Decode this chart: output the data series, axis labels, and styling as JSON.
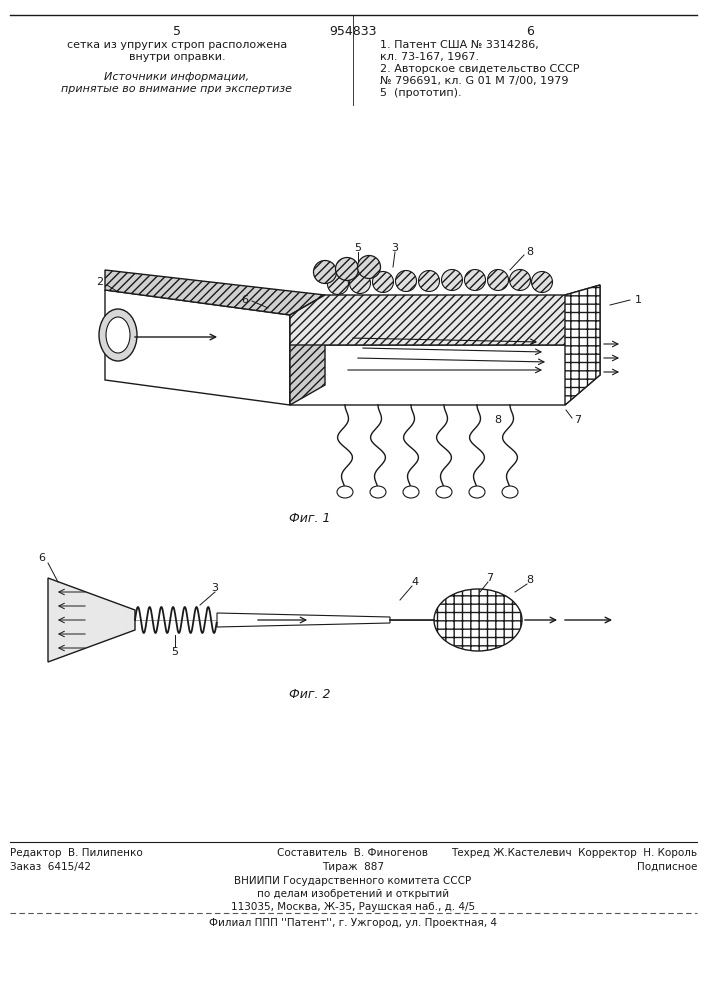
{
  "bg_color": "#f5f5f0",
  "paper_color": "#ffffff",
  "line_color": "#1a1a1a",
  "top_left_text": "5",
  "patent_number": "954833",
  "top_right_text": "6",
  "col_left_lines": [
    "сетка из упругих строп расположена",
    "внутри оправки."
  ],
  "col_left_label": "Источники информации,",
  "col_left_label2": "принятые во внимание при экспертизе",
  "col_right_lines": [
    "1. Патент США № 3314286,",
    "кл. 73-167, 1967.",
    "2. Авторское свидетельство СССР",
    "№ 796691, кл. G 01 M 7/00, 1979",
    "5  (прототип)."
  ],
  "fig1_caption": "Фиг. 1",
  "fig2_caption": "Фиг. 2",
  "footer_line1_left": "Редактор  В. Пилипенко",
  "footer_line1_center": "Составитель  В. Финогенов",
  "footer_line1_right": "Техред Ж.Кастелевич  Корректор  Н. Король",
  "footer_line2_left": "Заказ  6415/42",
  "footer_line2_center": "Тираж  887",
  "footer_line2_right": "Подписное",
  "footer_line3": "ВНИИПИ Государственного комитета СССР",
  "footer_line4": "по делам изобретений и открытий",
  "footer_line5": "113035, Москва, Ж-35, Раушская наб., д. 4/5",
  "footer_dashed": "Филиал ППП ''Патент'', г. Ужгород, ул. Проектная, 4",
  "font_size_header": 9,
  "font_size_body": 8,
  "font_size_footer": 7.5,
  "font_size_label": 7
}
